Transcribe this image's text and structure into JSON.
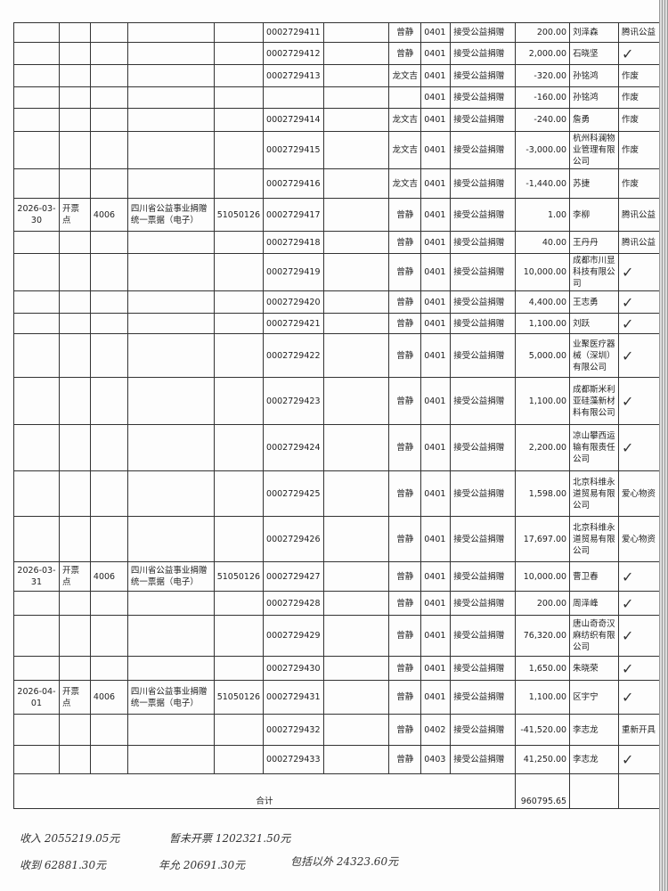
{
  "rows": [
    {
      "date": "",
      "type": "",
      "code": "",
      "name": "",
      "org": "",
      "no": "0002729411",
      "blank": "",
      "op": "曾静",
      "cat": "0401",
      "item": "接受公益捐赠",
      "amount": "200.00",
      "payer": "刘泽森",
      "note": "腾讯公益",
      "h": 22
    },
    {
      "date": "",
      "type": "",
      "code": "",
      "name": "",
      "org": "",
      "no": "0002729412",
      "blank": "",
      "op": "曾静",
      "cat": "0401",
      "item": "接受公益捐赠",
      "amount": "2,000.00",
      "payer": "石晓坚",
      "note": "✓",
      "h": 25
    },
    {
      "date": "",
      "type": "",
      "code": "",
      "name": "",
      "org": "",
      "no": "0002729413",
      "blank": "",
      "op": "龙文吉",
      "cat": "0401",
      "item": "接受公益捐赠",
      "amount": "-320.00",
      "payer": "孙铭鸿",
      "note": "作废",
      "h": 25
    },
    {
      "date": "",
      "type": "",
      "code": "",
      "name": "",
      "org": "",
      "no": "",
      "blank": "",
      "op": "",
      "cat": "0401",
      "item": "接受公益捐赠",
      "amount": "-160.00",
      "payer": "孙铭鸿",
      "note": "作废",
      "h": 24
    },
    {
      "date": "",
      "type": "",
      "code": "",
      "name": "",
      "org": "",
      "no": "0002729414",
      "blank": "",
      "op": "龙文吉",
      "cat": "0401",
      "item": "接受公益捐赠",
      "amount": "-240.00",
      "payer": "詹勇",
      "note": "作废",
      "h": 26
    },
    {
      "date": "",
      "type": "",
      "code": "",
      "name": "",
      "org": "",
      "no": "0002729415",
      "blank": "",
      "op": "龙文吉",
      "cat": "0401",
      "item": "接受公益捐赠",
      "amount": "-3,000.00",
      "payer": "杭州科澜物业管理有限公司",
      "note": "作废",
      "h": 40
    },
    {
      "date": "",
      "type": "",
      "code": "",
      "name": "",
      "org": "",
      "no": "0002729416",
      "blank": "",
      "op": "龙文吉",
      "cat": "0401",
      "item": "接受公益捐赠",
      "amount": "-1,440.00",
      "payer": "苏捷",
      "note": "作废",
      "h": 33
    },
    {
      "date": "2026-03-30",
      "type": "开票点",
      "code": "4006",
      "name": "四川省公益事业捐赠统一票据（电子）",
      "org": "51050126",
      "no": "0002729417",
      "blank": "",
      "op": "曾静",
      "cat": "0401",
      "item": "接受公益捐赠",
      "amount": "1.00",
      "payer": "李柳",
      "note": "腾讯公益",
      "h": 37
    },
    {
      "date": "",
      "type": "",
      "code": "",
      "name": "",
      "org": "",
      "no": "0002729418",
      "blank": "",
      "op": "曾静",
      "cat": "0401",
      "item": "接受公益捐赠",
      "amount": "40.00",
      "payer": "王丹丹",
      "note": "腾讯公益",
      "h": 25
    },
    {
      "date": "",
      "type": "",
      "code": "",
      "name": "",
      "org": "",
      "no": "0002729419",
      "blank": "",
      "op": "曾静",
      "cat": "0401",
      "item": "接受公益捐赠",
      "amount": "10,000.00",
      "payer": "成都市川显科技有限公司",
      "note": "✓",
      "h": 38
    },
    {
      "date": "",
      "type": "",
      "code": "",
      "name": "",
      "org": "",
      "no": "0002729420",
      "blank": "",
      "op": "曾静",
      "cat": "0401",
      "item": "接受公益捐赠",
      "amount": "4,400.00",
      "payer": "王志勇",
      "note": "✓",
      "h": 25
    },
    {
      "date": "",
      "type": "",
      "code": "",
      "name": "",
      "org": "",
      "no": "0002729421",
      "blank": "",
      "op": "曾静",
      "cat": "0401",
      "item": "接受公益捐赠",
      "amount": "1,100.00",
      "payer": "刘跃",
      "note": "✓",
      "h": 23
    },
    {
      "date": "",
      "type": "",
      "code": "",
      "name": "",
      "org": "",
      "no": "0002729422",
      "blank": "",
      "op": "曾静",
      "cat": "0401",
      "item": "接受公益捐赠",
      "amount": "5,000.00",
      "payer": "业聚医疗器械（深圳）有限公司",
      "note": "✓",
      "h": 49
    },
    {
      "date": "",
      "type": "",
      "code": "",
      "name": "",
      "org": "",
      "no": "0002729423",
      "blank": "",
      "op": "曾静",
      "cat": "0401",
      "item": "接受公益捐赠",
      "amount": "1,100.00",
      "payer": "成都斯米利亚硅藻新材料有限公司",
      "note": "✓",
      "h": 53
    },
    {
      "date": "",
      "type": "",
      "code": "",
      "name": "",
      "org": "",
      "no": "0002729424",
      "blank": "",
      "op": "曾静",
      "cat": "0401",
      "item": "接受公益捐赠",
      "amount": "2,200.00",
      "payer": "凉山攀西运输有限责任公司",
      "note": "✓",
      "h": 52
    },
    {
      "date": "",
      "type": "",
      "code": "",
      "name": "",
      "org": "",
      "no": "0002729425",
      "blank": "",
      "op": "曾静",
      "cat": "0401",
      "item": "接受公益捐赠",
      "amount": "1,598.00",
      "payer": "北京科维永道贸易有限公司",
      "note": "爱心物资",
      "h": 51
    },
    {
      "date": "",
      "type": "",
      "code": "",
      "name": "",
      "org": "",
      "no": "0002729426",
      "blank": "",
      "op": "曾静",
      "cat": "0401",
      "item": "接受公益捐赠",
      "amount": "17,697.00",
      "payer": "北京科维永道贸易有限公司",
      "note": "爱心物资",
      "h": 51
    },
    {
      "date": "2026-03-31",
      "type": "开票点",
      "code": "4006",
      "name": "四川省公益事业捐赠统一票据（电子）",
      "org": "51050126",
      "no": "0002729427",
      "blank": "",
      "op": "曾静",
      "cat": "0401",
      "item": "接受公益捐赠",
      "amount": "10,000.00",
      "payer": "曹卫春",
      "note": "✓",
      "h": 33
    },
    {
      "date": "",
      "type": "",
      "code": "",
      "name": "",
      "org": "",
      "no": "0002729428",
      "blank": "",
      "op": "曾静",
      "cat": "0401",
      "item": "接受公益捐赠",
      "amount": "200.00",
      "payer": "周泽峰",
      "note": "✓",
      "h": 27
    },
    {
      "date": "",
      "type": "",
      "code": "",
      "name": "",
      "org": "",
      "no": "0002729429",
      "blank": "",
      "op": "曾静",
      "cat": "0401",
      "item": "接受公益捐赠",
      "amount": "76,320.00",
      "payer": "唐山奇奇汉麻纺织有限公司",
      "note": "✓",
      "h": 46
    },
    {
      "date": "",
      "type": "",
      "code": "",
      "name": "",
      "org": "",
      "no": "0002729430",
      "blank": "",
      "op": "曾静",
      "cat": "0401",
      "item": "接受公益捐赠",
      "amount": "1,650.00",
      "payer": "朱晓荣",
      "note": "✓",
      "h": 27
    },
    {
      "date": "2026-04-01",
      "type": "开票点",
      "code": "4006",
      "name": "四川省公益事业捐赠统一票据（电子）",
      "org": "51050126",
      "no": "0002729431",
      "blank": "",
      "op": "曾静",
      "cat": "0401",
      "item": "接受公益捐赠",
      "amount": "1,100.00",
      "payer": "区宇宁",
      "note": "✓",
      "h": 38
    },
    {
      "date": "",
      "type": "",
      "code": "",
      "name": "",
      "org": "",
      "no": "0002729432",
      "blank": "",
      "op": "曾静",
      "cat": "0402",
      "item": "接受公益捐赠",
      "amount": "-41,520.00",
      "payer": "李志龙",
      "note": "重新开具",
      "h": 35
    },
    {
      "date": "",
      "type": "",
      "code": "",
      "name": "",
      "org": "",
      "no": "0002729433",
      "blank": "",
      "op": "曾静",
      "cat": "0403",
      "item": "接受公益捐赠",
      "amount": "41,250.00",
      "payer": "李志龙",
      "note": "✓",
      "h": 32
    }
  ],
  "total": {
    "label": "合计",
    "amount": "960795.65"
  },
  "notes": [
    "收入 2055219.05元",
    "暂未开票 1202321.50元",
    "收到 62881.30元",
    "年允 20691.30元",
    "包括以外 24323.60元"
  ]
}
